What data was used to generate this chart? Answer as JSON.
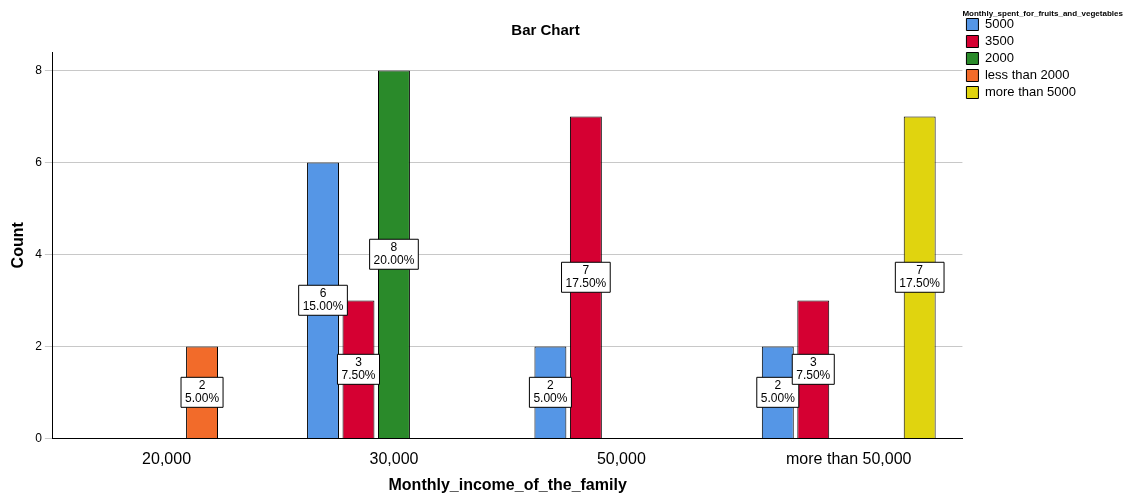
{
  "chart_data": {
    "type": "bar",
    "title": "Bar Chart",
    "xlabel": "Monthly_income_of_the_family",
    "ylabel": "Count",
    "legend_title": "Monthly_spent_for_fruits_and_vegetables",
    "categories": [
      "20,000",
      "30,000",
      "50,000",
      "more than 50,000"
    ],
    "series": [
      {
        "name": "5000",
        "color": "#5596e6",
        "values": [
          null,
          6,
          2,
          2
        ],
        "value_labels": [
          null,
          "6\n15.00%",
          "2\n5.00%",
          "2\n5.00%"
        ]
      },
      {
        "name": "3500",
        "color": "#d50032",
        "values": [
          null,
          3,
          7,
          3
        ],
        "value_labels": [
          null,
          "3\n7.50%",
          "7\n17.50%",
          "3\n7.50%"
        ]
      },
      {
        "name": "2000",
        "color": "#2a8a2a",
        "values": [
          null,
          8,
          null,
          null
        ],
        "value_labels": [
          null,
          "8\n20.00%",
          null,
          null
        ]
      },
      {
        "name": "less than 2000",
        "color": "#f26b2a",
        "values": [
          2,
          null,
          null,
          null
        ],
        "value_labels": [
          "2\n5.00%",
          null,
          null,
          null
        ]
      },
      {
        "name": "more than 5000",
        "color": "#e0d40f",
        "values": [
          null,
          null,
          null,
          7
        ],
        "value_labels": [
          null,
          null,
          null,
          "7\n17.50%"
        ]
      }
    ],
    "ylim": [
      0,
      8.4
    ],
    "yticks": [
      0,
      2,
      4,
      6,
      8
    ],
    "grid": "y",
    "legend": "top right"
  }
}
